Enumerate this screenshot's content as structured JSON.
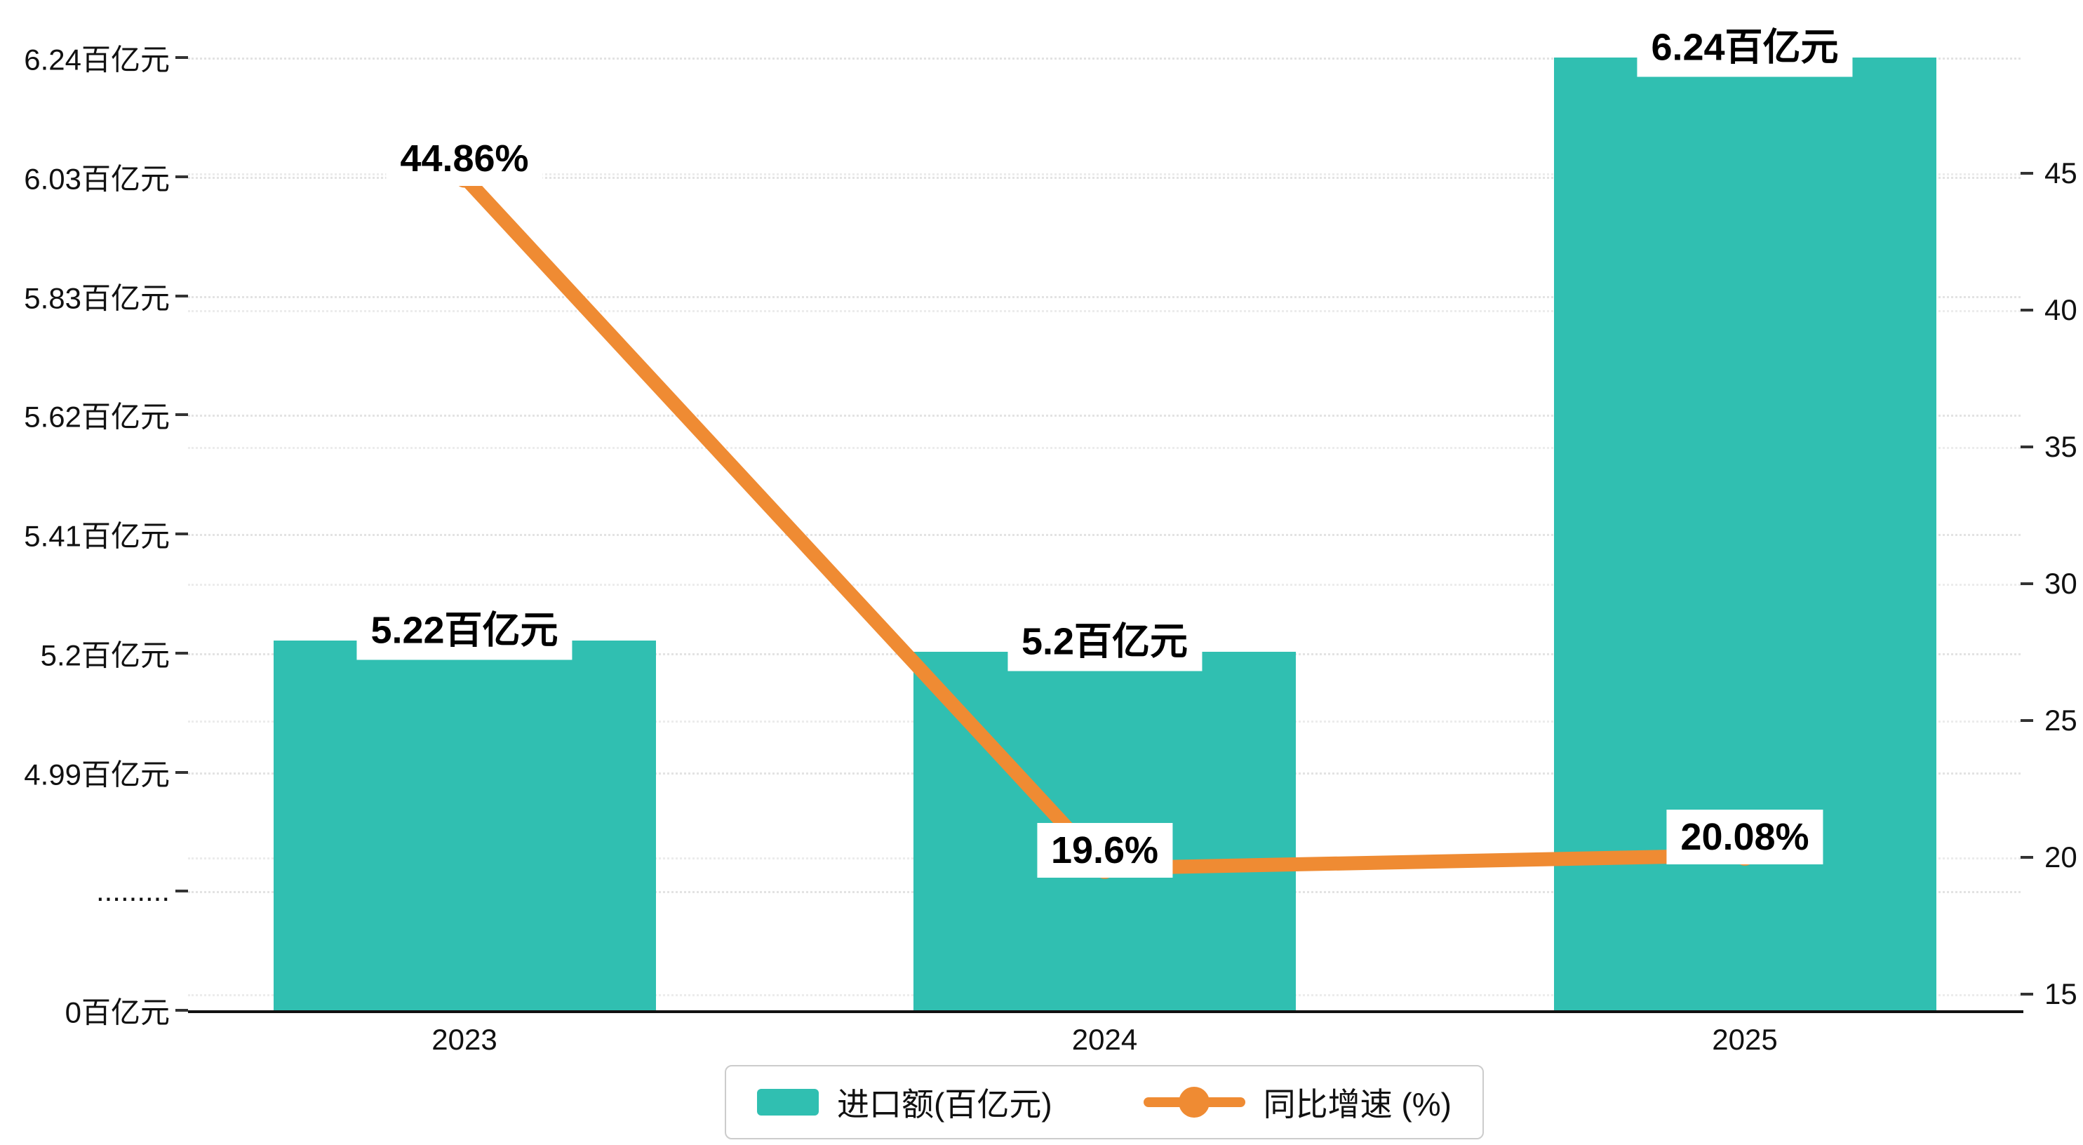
{
  "chart_data": {
    "type": "bar",
    "categories": [
      "2023",
      "2024",
      "2025"
    ],
    "series": [
      {
        "name": "进口额(百亿元)",
        "type": "bar",
        "axis": "left",
        "color": "#30BFB1",
        "values": [
          5.22,
          5.2,
          6.24
        ],
        "data_labels": [
          "5.22百亿元",
          "5.2百亿元",
          "6.24百亿元"
        ]
      },
      {
        "name": "同比增速 (%)",
        "type": "line",
        "axis": "right",
        "color": "#EF8B33",
        "values": [
          44.86,
          19.6,
          20.08
        ],
        "data_labels": [
          "44.86%",
          "19.6%",
          "20.08%"
        ]
      }
    ],
    "y_axis_left": {
      "tick_labels": [
        "6.24百亿元",
        "6.03百亿元",
        "5.83百亿元",
        "5.62百亿元",
        "5.41百亿元",
        "5.2百亿元",
        "4.99百亿元",
        ".........",
        "0百亿元"
      ],
      "tick_values": [
        6.24,
        6.03,
        5.83,
        5.62,
        5.41,
        5.2,
        4.99,
        null,
        0
      ],
      "broken_axis": true
    },
    "y_axis_right": {
      "tick_labels": [
        "45",
        "40",
        "35",
        "30",
        "25",
        "20",
        "15"
      ],
      "tick_values": [
        45,
        40,
        35,
        30,
        25,
        20,
        15
      ]
    },
    "legend": [
      {
        "label": "进口额(百亿元)",
        "marker": "rect",
        "color": "#30BFB1"
      },
      {
        "label": "同比增速 (%)",
        "marker": "line-dot",
        "color": "#EF8B33"
      }
    ],
    "grid": "horizontal-dashed",
    "background": "#FFFFFF",
    "title": ""
  }
}
